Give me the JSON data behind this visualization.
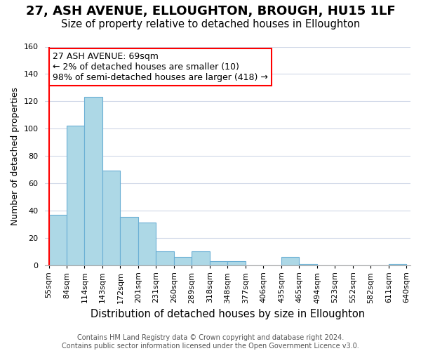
{
  "title": "27, ASH AVENUE, ELLOUGHTON, BROUGH, HU15 1LF",
  "subtitle": "Size of property relative to detached houses in Elloughton",
  "xlabel": "Distribution of detached houses by size in Elloughton",
  "ylabel": "Number of detached properties",
  "footer_line1": "Contains HM Land Registry data © Crown copyright and database right 2024.",
  "footer_line2": "Contains public sector information licensed under the Open Government Licence v3.0.",
  "bin_labels": [
    "55sqm",
    "84sqm",
    "114sqm",
    "143sqm",
    "172sqm",
    "201sqm",
    "231sqm",
    "260sqm",
    "289sqm",
    "318sqm",
    "348sqm",
    "377sqm",
    "406sqm",
    "435sqm",
    "465sqm",
    "494sqm",
    "523sqm",
    "552sqm",
    "582sqm",
    "611sqm",
    "640sqm"
  ],
  "bar_values": [
    37,
    102,
    123,
    69,
    35,
    31,
    10,
    6,
    10,
    3,
    3,
    0,
    0,
    6,
    1,
    0,
    0,
    0,
    0,
    1
  ],
  "bar_color": "#add8e6",
  "bar_edge_color": "#6aafd4",
  "annotation_line1": "27 ASH AVENUE: 69sqm",
  "annotation_line2": "← 2% of detached houses are smaller (10)",
  "annotation_line3": "98% of semi-detached houses are larger (418) →",
  "red_line_x": -0.5,
  "ylim": [
    0,
    160
  ],
  "yticks": [
    0,
    20,
    40,
    60,
    80,
    100,
    120,
    140,
    160
  ],
  "title_fontsize": 13,
  "subtitle_fontsize": 10.5,
  "xlabel_fontsize": 10.5,
  "ylabel_fontsize": 9,
  "tick_fontsize": 8,
  "footer_fontsize": 7,
  "annotation_fontsize": 9
}
